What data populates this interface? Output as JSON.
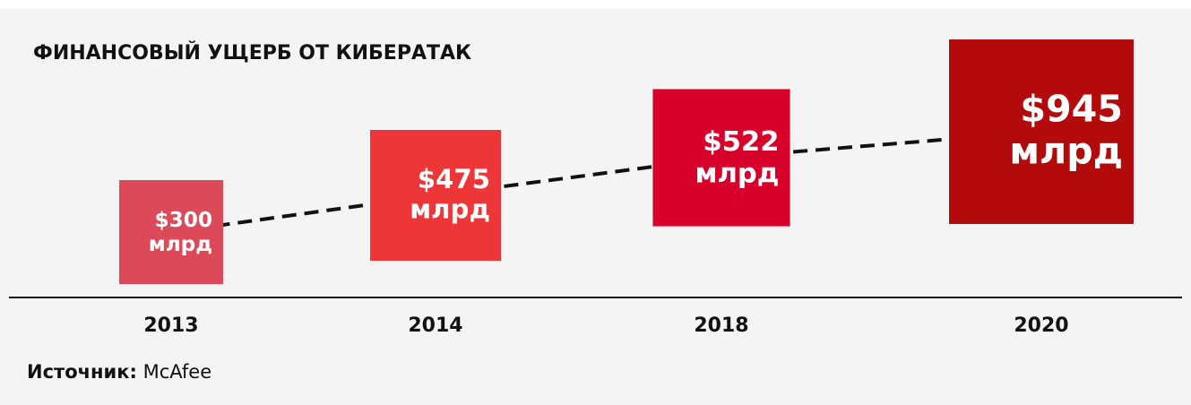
{
  "chart_data": {
    "type": "square",
    "title": "ФИНАНСОВЫЙ УЩЕРБ ОТ КИБЕРАТАК",
    "categories": [
      "2013",
      "2014",
      "2018",
      "2020"
    ],
    "values": [
      300,
      475,
      522,
      945
    ],
    "value_labels": [
      "$300 млрд",
      "$475 млрд",
      "$522 млрд",
      "$945 млрд"
    ],
    "colors": [
      "#dc4a5a",
      "#ee3538",
      "#d7002a",
      "#b30b0b"
    ],
    "source_label": "Источник:",
    "source": "McAfee"
  }
}
